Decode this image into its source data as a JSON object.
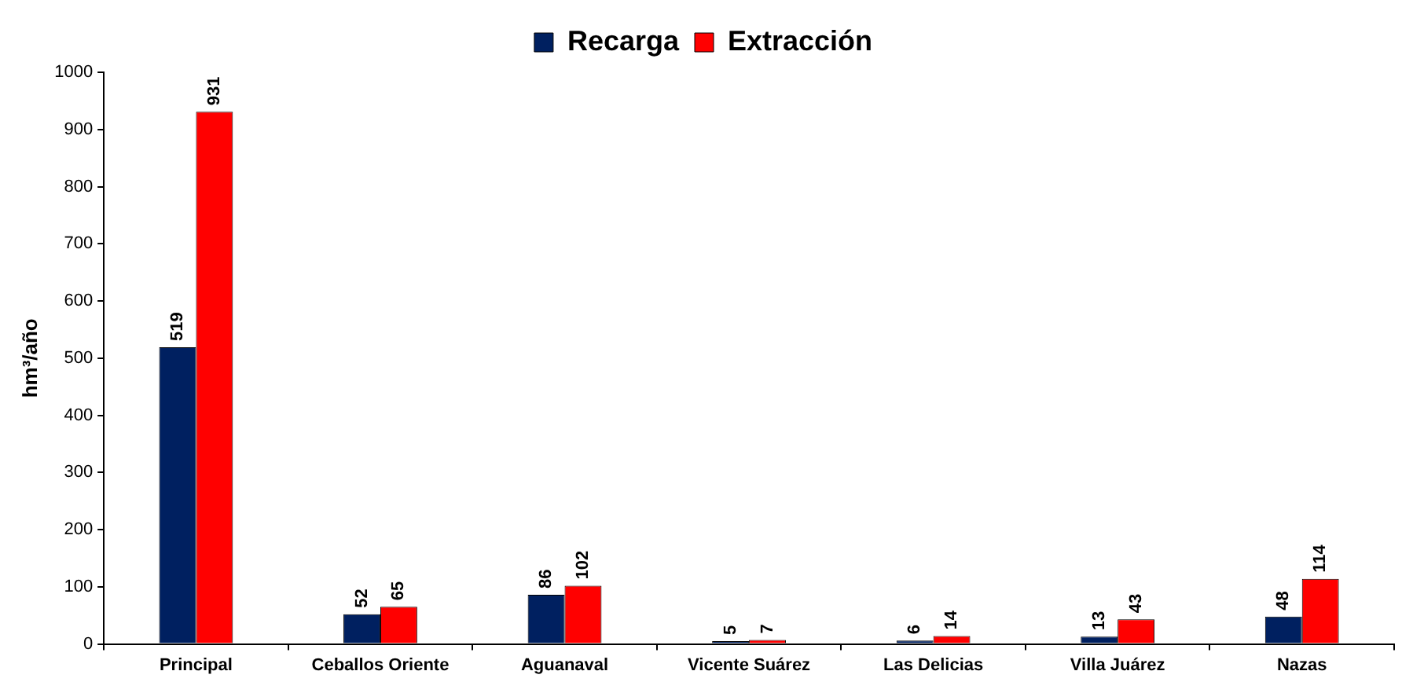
{
  "chart_data": {
    "type": "bar",
    "ylabel": "hm³/año",
    "categories": [
      "Principal",
      "Ceballos Oriente",
      "Aguanaval",
      "Vicente Suárez",
      "Las Delicias",
      "Villa Juárez",
      "Nazas"
    ],
    "series": [
      {
        "name": "Recarga",
        "color": "#002060",
        "values": [
          519,
          52,
          86,
          5,
          6,
          13,
          48
        ]
      },
      {
        "name": "Extracción",
        "color": "#ff0000",
        "values": [
          931,
          65,
          102,
          7,
          14,
          43,
          114
        ]
      }
    ],
    "ylim": [
      0,
      1000
    ],
    "yticks": [
      0,
      100,
      200,
      300,
      400,
      500,
      600,
      700,
      800,
      900,
      1000
    ],
    "grid": false,
    "legend": "top",
    "data_labels": true
  }
}
